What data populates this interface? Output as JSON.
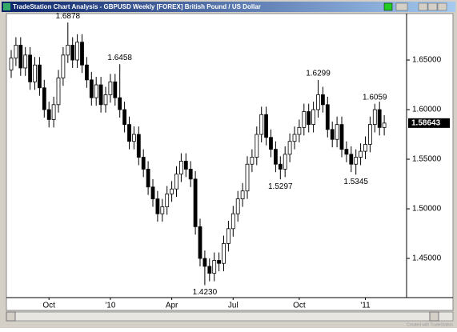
{
  "window": {
    "title": "TradeStation Chart Analysis - GBPUSD Weekly [FOREX] British Pound / US Dollar",
    "footer": "Created with TradeStation"
  },
  "chart_data": {
    "type": "candlestick",
    "categories": [
      null,
      null,
      null,
      null,
      null,
      null,
      null,
      null,
      "Oct",
      null,
      null,
      null,
      null,
      null,
      null,
      null,
      null,
      null,
      null,
      null,
      null,
      "'10",
      null,
      null,
      null,
      null,
      null,
      null,
      null,
      null,
      null,
      null,
      null,
      null,
      "Apr",
      null,
      null,
      null,
      null,
      null,
      null,
      null,
      null,
      null,
      null,
      null,
      null,
      "Jul",
      null,
      null,
      null,
      null,
      null,
      null,
      null,
      null,
      null,
      null,
      null,
      null,
      null,
      "Oct",
      null,
      null,
      null,
      null,
      null,
      null,
      null,
      null,
      null,
      null,
      null,
      null,
      null,
      "'11",
      null,
      null,
      null,
      null
    ],
    "open": [
      1.64,
      1.652,
      1.665,
      1.642,
      1.655,
      1.628,
      1.645,
      1.622,
      1.6,
      1.59,
      1.605,
      1.632,
      1.655,
      1.665,
      1.65,
      1.668,
      1.645,
      1.63,
      1.612,
      1.625,
      1.605,
      1.615,
      1.628,
      1.612,
      1.6,
      1.585,
      1.568,
      1.575,
      1.552,
      1.54,
      1.522,
      1.51,
      1.495,
      1.502,
      1.515,
      1.52,
      1.535,
      1.548,
      1.54,
      1.53,
      1.482,
      1.45,
      1.442,
      1.435,
      1.448,
      1.445,
      1.465,
      1.48,
      1.495,
      1.51,
      1.518,
      1.545,
      1.552,
      1.575,
      1.595,
      1.572,
      1.56,
      1.545,
      1.54,
      1.555,
      1.568,
      1.575,
      1.582,
      1.598,
      1.585,
      1.6,
      1.615,
      1.605,
      1.58,
      1.57,
      1.585,
      1.56,
      1.555,
      1.545,
      1.552,
      1.558,
      1.565,
      1.585,
      1.6,
      1.582
    ],
    "high": [
      1.66,
      1.673,
      1.673,
      1.663,
      1.663,
      1.653,
      1.653,
      1.63,
      1.608,
      1.613,
      1.64,
      1.663,
      1.6878,
      1.673,
      1.676,
      1.676,
      1.653,
      1.638,
      1.633,
      1.633,
      1.623,
      1.636,
      1.636,
      1.6458,
      1.608,
      1.593,
      1.583,
      1.583,
      1.56,
      1.548,
      1.53,
      1.518,
      1.51,
      1.523,
      1.528,
      1.543,
      1.556,
      1.556,
      1.548,
      1.538,
      1.49,
      1.458,
      1.45,
      1.456,
      1.456,
      1.473,
      1.488,
      1.503,
      1.518,
      1.526,
      1.553,
      1.56,
      1.583,
      1.603,
      1.603,
      1.58,
      1.568,
      1.553,
      1.563,
      1.576,
      1.583,
      1.59,
      1.606,
      1.606,
      1.608,
      1.6299,
      1.623,
      1.613,
      1.588,
      1.593,
      1.593,
      1.568,
      1.563,
      1.56,
      1.566,
      1.573,
      1.593,
      1.6059,
      1.608,
      1.5944
    ],
    "low": [
      1.632,
      1.644,
      1.634,
      1.634,
      1.62,
      1.62,
      1.614,
      1.592,
      1.582,
      1.582,
      1.597,
      1.624,
      1.647,
      1.642,
      1.642,
      1.637,
      1.622,
      1.604,
      1.604,
      1.597,
      1.597,
      1.607,
      1.604,
      1.592,
      1.577,
      1.56,
      1.56,
      1.544,
      1.532,
      1.514,
      1.502,
      1.487,
      1.487,
      1.494,
      1.507,
      1.512,
      1.527,
      1.532,
      1.522,
      1.474,
      1.442,
      1.423,
      1.427,
      1.427,
      1.437,
      1.437,
      1.457,
      1.472,
      1.487,
      1.502,
      1.51,
      1.537,
      1.544,
      1.567,
      1.564,
      1.552,
      1.537,
      1.5297,
      1.532,
      1.547,
      1.56,
      1.567,
      1.574,
      1.577,
      1.577,
      1.592,
      1.597,
      1.572,
      1.562,
      1.562,
      1.552,
      1.547,
      1.537,
      1.5345,
      1.544,
      1.55,
      1.557,
      1.577,
      1.574,
      1.574
    ],
    "close": [
      1.652,
      1.665,
      1.642,
      1.655,
      1.628,
      1.645,
      1.622,
      1.6,
      1.59,
      1.605,
      1.632,
      1.655,
      1.665,
      1.65,
      1.668,
      1.645,
      1.63,
      1.612,
      1.625,
      1.605,
      1.615,
      1.628,
      1.612,
      1.6,
      1.585,
      1.568,
      1.575,
      1.552,
      1.54,
      1.522,
      1.51,
      1.495,
      1.502,
      1.515,
      1.52,
      1.535,
      1.548,
      1.54,
      1.53,
      1.482,
      1.45,
      1.442,
      1.435,
      1.448,
      1.445,
      1.465,
      1.48,
      1.495,
      1.51,
      1.518,
      1.545,
      1.552,
      1.575,
      1.595,
      1.572,
      1.56,
      1.545,
      1.54,
      1.555,
      1.568,
      1.575,
      1.582,
      1.598,
      1.585,
      1.6,
      1.615,
      1.605,
      1.58,
      1.57,
      1.585,
      1.56,
      1.555,
      1.545,
      1.552,
      1.558,
      1.565,
      1.585,
      1.6,
      1.582,
      1.58643
    ],
    "high_labels": [
      null,
      null,
      null,
      null,
      null,
      null,
      null,
      null,
      null,
      null,
      null,
      null,
      "1.6878",
      null,
      null,
      null,
      null,
      null,
      null,
      null,
      null,
      null,
      null,
      "1.6458",
      null,
      null,
      null,
      null,
      null,
      null,
      null,
      null,
      null,
      null,
      null,
      null,
      null,
      null,
      null,
      null,
      null,
      null,
      null,
      null,
      null,
      null,
      null,
      null,
      null,
      null,
      null,
      null,
      null,
      null,
      null,
      null,
      null,
      null,
      null,
      null,
      null,
      null,
      null,
      null,
      null,
      "1.6299",
      null,
      null,
      null,
      null,
      null,
      null,
      null,
      null,
      null,
      null,
      null,
      "1.6059",
      null,
      null
    ],
    "low_labels": [
      null,
      null,
      null,
      null,
      null,
      null,
      null,
      null,
      null,
      null,
      null,
      null,
      null,
      null,
      null,
      null,
      null,
      null,
      null,
      null,
      null,
      null,
      null,
      null,
      null,
      null,
      null,
      null,
      null,
      null,
      null,
      null,
      null,
      null,
      null,
      null,
      null,
      null,
      null,
      null,
      null,
      "1.4230",
      null,
      null,
      null,
      null,
      null,
      null,
      null,
      null,
      null,
      null,
      null,
      null,
      null,
      null,
      null,
      "1.5297",
      null,
      null,
      null,
      null,
      null,
      null,
      null,
      null,
      null,
      null,
      null,
      null,
      null,
      null,
      null,
      "1.5345",
      null,
      null,
      null,
      null,
      null,
      null
    ],
    "last_price": {
      "value": 1.58643,
      "label": "1.58643"
    },
    "ylim": [
      1.4105,
      1.6968
    ],
    "yticks": [
      {
        "value": 1.45,
        "label": "1.45000"
      },
      {
        "value": 1.5,
        "label": "1.50000"
      },
      {
        "value": 1.55,
        "label": "1.55000"
      },
      {
        "value": 1.6,
        "label": "1.60000"
      },
      {
        "value": 1.65,
        "label": "1.65000"
      }
    ],
    "up_color": "#ffffff",
    "down_color": "#000000"
  }
}
